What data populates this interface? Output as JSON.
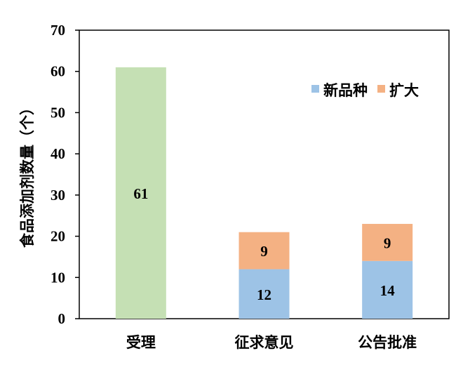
{
  "chart_data": {
    "type": "bar",
    "stacked": true,
    "ylabel": "食品添加剂数量（个）",
    "ylim": [
      0,
      70
    ],
    "yticks": [
      0,
      10,
      20,
      30,
      40,
      50,
      60,
      70
    ],
    "grid": false,
    "legend_position": "top-right",
    "categories": [
      "受理",
      "征求意见",
      "公告批准"
    ],
    "single_bar": {
      "category": "受理",
      "value": 61,
      "color": "#c5e0b4"
    },
    "series": [
      {
        "name": "新品种",
        "color": "#9dc3e6",
        "values": [
          null,
          12,
          14
        ]
      },
      {
        "name": "扩大",
        "color": "#f4b183",
        "values": [
          null,
          9,
          9
        ]
      }
    ]
  }
}
